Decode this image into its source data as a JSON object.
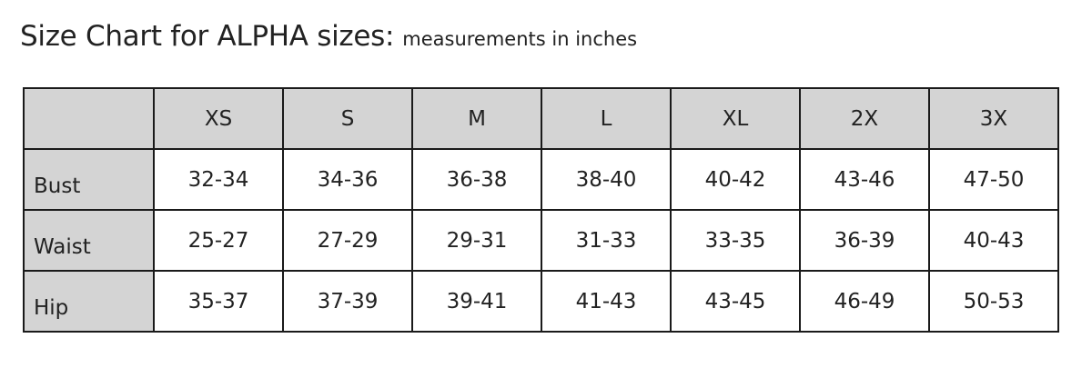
{
  "title": "Size Chart for ALPHA sizes:",
  "subtitle": "measurements in inches",
  "table": {
    "columns": [
      "",
      "XS",
      "S",
      "M",
      "L",
      "XL",
      "2X",
      "3X"
    ],
    "rows": [
      {
        "label": "Bust",
        "values": [
          "32-34",
          "34-36",
          "36-38",
          "38-40",
          "40-42",
          "43-46",
          "47-50"
        ]
      },
      {
        "label": "Waist",
        "values": [
          "25-27",
          "27-29",
          "29-31",
          "31-33",
          "33-35",
          "36-39",
          "40-43"
        ]
      },
      {
        "label": "Hip",
        "values": [
          "35-37",
          "37-39",
          "39-41",
          "41-43",
          "43-45",
          "46-49",
          "50-53"
        ]
      }
    ]
  },
  "colors": {
    "header_bg": "#d4d4d4",
    "border": "#1a1a1a"
  }
}
